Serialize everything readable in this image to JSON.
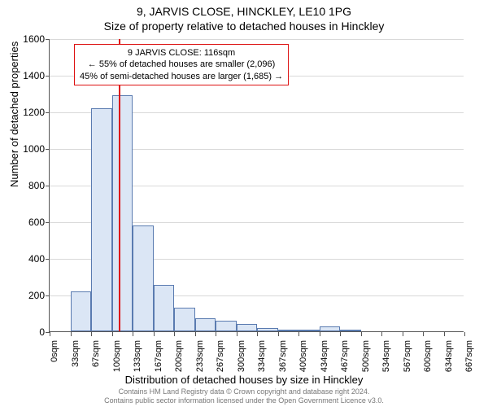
{
  "title_line1": "9, JARVIS CLOSE, HINCKLEY, LE10 1PG",
  "title_line2": "Size of property relative to detached houses in Hinckley",
  "ylabel": "Number of detached properties",
  "xlabel": "Distribution of detached houses by size in Hinckley",
  "footer_line1": "Contains HM Land Registry data © Crown copyright and database right 2024.",
  "footer_line2": "Contains public sector information licensed under the Open Government Licence v3.0.",
  "chart": {
    "type": "histogram",
    "ylim": [
      0,
      1600
    ],
    "ytick_step": 200,
    "yticks": [
      0,
      200,
      400,
      600,
      800,
      1000,
      1200,
      1400,
      1600
    ],
    "xtick_labels": [
      "0sqm",
      "33sqm",
      "67sqm",
      "100sqm",
      "133sqm",
      "167sqm",
      "200sqm",
      "233sqm",
      "267sqm",
      "300sqm",
      "334sqm",
      "367sqm",
      "400sqm",
      "434sqm",
      "467sqm",
      "500sqm",
      "534sqm",
      "567sqm",
      "600sqm",
      "634sqm",
      "667sqm"
    ],
    "bar_values": [
      0,
      220,
      1220,
      1290,
      580,
      255,
      130,
      70,
      60,
      40,
      20,
      10,
      5,
      25,
      5,
      0,
      0,
      0,
      0,
      0
    ],
    "bar_fill": "#dbe6f5",
    "bar_stroke": "#5a7bb0",
    "grid_color": "#d9d9d9",
    "axis_color": "#555555",
    "background_color": "#ffffff",
    "marker_line_color": "#dd1111",
    "marker_value_sqm": 116,
    "x_max_sqm": 700,
    "annotation": {
      "line1": "9 JARVIS CLOSE: 116sqm",
      "line2": "← 55% of detached houses are smaller (2,096)",
      "line3": "45% of semi-detached houses are larger (1,685) →",
      "border_color": "#dd1111"
    }
  },
  "fonts": {
    "title_fontsize": 14,
    "axis_label_fontsize": 13,
    "tick_fontsize": 12,
    "xtick_fontsize": 11,
    "annotation_fontsize": 11,
    "footer_fontsize": 9
  }
}
